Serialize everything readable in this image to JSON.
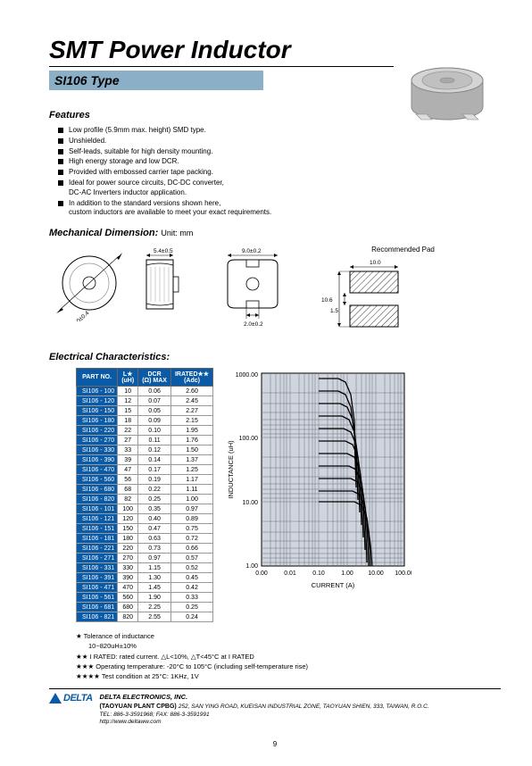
{
  "title": "SMT Power Inductor",
  "subtitle": "SI106 Type",
  "features_heading": "Features",
  "features": [
    "Low profile (5.9mm max. height) SMD type.",
    "Unshielded.",
    "Self-leads, suitable for high density mounting.",
    "High energy storage and low DCR.",
    "Provided with embossed carrier tape packing.",
    "Ideal for power source circuits, DC-DC converter,\nDC-AC Inverters inductor application.",
    "In addition to the standard versions shown here,\ncustom inductors are available to meet your exact requirements."
  ],
  "mech_heading": "Mechanical Dimension:",
  "mech_unit": "Unit: mm",
  "pad_label": "Recommended Pad",
  "dims": {
    "diameter": "Φ10.0±0.4",
    "h1": "5.4±0.5",
    "w": "9.0±0.2",
    "gap_bot": "2.0±0.2",
    "pad_w": "10.0",
    "pad_h": "10.6",
    "pad_slot": "1.5"
  },
  "char_heading": "Electrical Characteristics:",
  "table": {
    "headers": [
      "PART NO.",
      "L★\n(uH)",
      "DCR\n(Ω) MAX",
      "IRATED★★\n(Adc)"
    ],
    "rows": [
      [
        "SI106 - 100",
        "10",
        "0.06",
        "2.60"
      ],
      [
        "SI106 - 120",
        "12",
        "0.07",
        "2.45"
      ],
      [
        "SI106 - 150",
        "15",
        "0.05",
        "2.27"
      ],
      [
        "SI106 - 180",
        "18",
        "0.09",
        "2.15"
      ],
      [
        "SI106 - 220",
        "22",
        "0.10",
        "1.95"
      ],
      [
        "SI106 - 270",
        "27",
        "0.11",
        "1.76"
      ],
      [
        "SI106 - 330",
        "33",
        "0.12",
        "1.50"
      ],
      [
        "SI106 - 390",
        "39",
        "0.14",
        "1.37"
      ],
      [
        "SI106 - 470",
        "47",
        "0.17",
        "1.25"
      ],
      [
        "SI106 - 560",
        "56",
        "0.19",
        "1.17"
      ],
      [
        "SI106 - 680",
        "68",
        "0.22",
        "1.11"
      ],
      [
        "SI106 - 820",
        "82",
        "0.25",
        "1.00"
      ],
      [
        "SI106 - 101",
        "100",
        "0.35",
        "0.97"
      ],
      [
        "SI106 - 121",
        "120",
        "0.40",
        "0.89"
      ],
      [
        "SI106 - 151",
        "150",
        "0.47",
        "0.75"
      ],
      [
        "SI106 - 181",
        "180",
        "0.63",
        "0.72"
      ],
      [
        "SI106 - 221",
        "220",
        "0.73",
        "0.66"
      ],
      [
        "SI106 - 271",
        "270",
        "0.97",
        "0.57"
      ],
      [
        "SI106 - 331",
        "330",
        "1.15",
        "0.52"
      ],
      [
        "SI106 - 391",
        "390",
        "1.30",
        "0.45"
      ],
      [
        "SI106 - 471",
        "470",
        "1.45",
        "0.42"
      ],
      [
        "SI106 - 561",
        "560",
        "1.90",
        "0.33"
      ],
      [
        "SI106 - 681",
        "680",
        "2.25",
        "0.25"
      ],
      [
        "SI106 - 821",
        "820",
        "2.55",
        "0.24"
      ]
    ]
  },
  "chart": {
    "ylabel": "INDUCTANCE (uH)",
    "xlabel": "CURRENT (A)",
    "yticks": [
      "1.00",
      "10.00",
      "100.00",
      "1000.00"
    ],
    "xticks": [
      "0.00",
      "0.01",
      "0.10",
      "1.00",
      "10.00",
      "100.00"
    ],
    "bg": "#d0d4dc",
    "grid": "#6b7280",
    "line": "#000000"
  },
  "notes": {
    "n1": "★ Tolerance of inductance",
    "n1b": "10~820uH±10%",
    "n2": "★★ I RATED: rated current. △L<10%, △T<45°C  at I RATED",
    "n3": "★★★ Operating temperature: -20°C to 105°C (including self-temperature rise)",
    "n4": "★★★★ Test condition at 25°C: 1KHz, 1V"
  },
  "footer": {
    "logo": "DELTA",
    "company": "DELTA ELECTRONICS, INC.",
    "plant": "(TAOYUAN PLANT CPBG)",
    "addr": "252, SAN YING ROAD, KUEISAN INDUSTRIAL ZONE, TAOYUAN SHIEN, 333, TAIWAN, R.O.C.",
    "tel": "TEL: 886-3-3591968; FAX: 886-3-3591991",
    "url": "http://www.deltaww.com"
  },
  "page_number": "9"
}
